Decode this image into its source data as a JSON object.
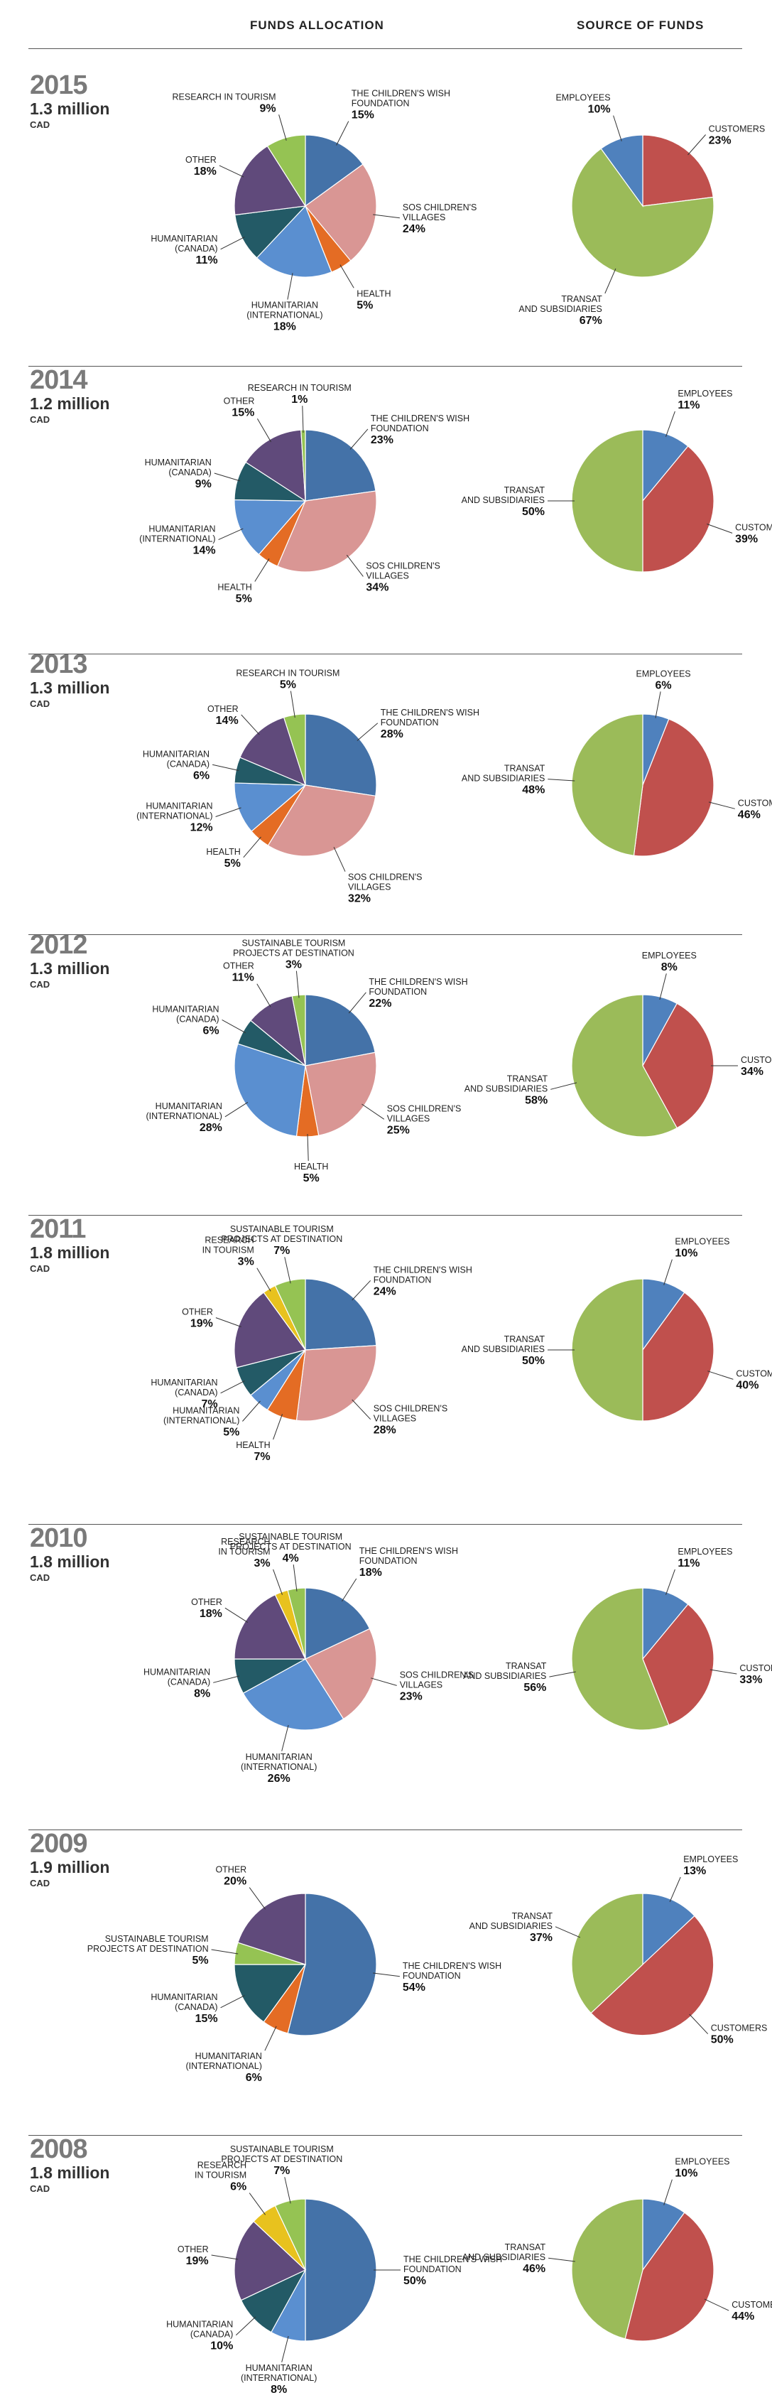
{
  "headers": {
    "funds": "FUNDS ALLOCATION",
    "source": "SOURCE OF FUNDS"
  },
  "colors": {
    "wish": "#4472a8",
    "sos": "#d99694",
    "health": "#e46c24",
    "intl": "#5a8fd0",
    "canada": "#235a66",
    "other": "#604a7b",
    "research": "#e8c21e",
    "sustainable": "#95c353",
    "employees": "#4f81bd",
    "customers": "#c0504d",
    "transat": "#9bbb59"
  },
  "chart_data": [
    {
      "year": "2015",
      "amount": "1.3 million",
      "unit": "CAD",
      "allocation": {
        "type": "pie",
        "title": "FUNDS ALLOCATION",
        "slices": [
          {
            "key": "wish",
            "label": [
              "THE CHILDREN'S WISH",
              "FOUNDATION"
            ],
            "value": 15,
            "text": "15%"
          },
          {
            "key": "sos",
            "label": [
              "SOS CHILDREN'S",
              "VILLAGES"
            ],
            "value": 24,
            "text": "24%"
          },
          {
            "key": "health",
            "label": [
              "HEALTH"
            ],
            "value": 5,
            "text": "5%"
          },
          {
            "key": "intl",
            "label": [
              "HUMANITARIAN",
              "(INTERNATIONAL)"
            ],
            "value": 18,
            "text": "18%"
          },
          {
            "key": "canada",
            "label": [
              "HUMANITARIAN",
              "(CANADA)"
            ],
            "value": 11,
            "text": "11%"
          },
          {
            "key": "other",
            "label": [
              "OTHER"
            ],
            "value": 18,
            "text": "18%"
          },
          {
            "key": "sustainable",
            "label": [
              "RESEARCH IN TOURISM"
            ],
            "value": 9,
            "text": "9%"
          }
        ]
      },
      "source": {
        "type": "pie",
        "title": "SOURCE OF FUNDS",
        "slices": [
          {
            "key": "customers",
            "label": [
              "CUSTOMERS"
            ],
            "value": 23,
            "text": "23%"
          },
          {
            "key": "transat",
            "label": [
              "TRANSAT",
              "AND SUBSIDIARIES"
            ],
            "value": 67,
            "text": "67%"
          },
          {
            "key": "employees",
            "label": [
              "EMPLOYEES"
            ],
            "value": 10,
            "text": "10%"
          }
        ]
      }
    },
    {
      "year": "2014",
      "amount": "1.2 million",
      "unit": "CAD",
      "allocation": {
        "type": "pie",
        "title": "FUNDS ALLOCATION",
        "slices": [
          {
            "key": "wish",
            "label": [
              "THE CHILDREN'S WISH",
              "FOUNDATION"
            ],
            "value": 23,
            "text": "23%"
          },
          {
            "key": "sos",
            "label": [
              "SOS CHILDREN'S",
              "VILLAGES"
            ],
            "value": 34,
            "text": "34%"
          },
          {
            "key": "health",
            "label": [
              "HEALTH"
            ],
            "value": 5,
            "text": "5%"
          },
          {
            "key": "intl",
            "label": [
              "HUMANITARIAN",
              "(INTERNATIONAL)"
            ],
            "value": 14,
            "text": "14%"
          },
          {
            "key": "canada",
            "label": [
              "HUMANITARIAN",
              "(CANADA)"
            ],
            "value": 9,
            "text": "9%"
          },
          {
            "key": "other",
            "label": [
              "OTHER"
            ],
            "value": 15,
            "text": "15%"
          },
          {
            "key": "sustainable",
            "label": [
              "RESEARCH IN TOURISM"
            ],
            "value": 1,
            "text": "1%"
          }
        ]
      },
      "source": {
        "type": "pie",
        "title": "SOURCE OF FUNDS",
        "slices": [
          {
            "key": "employees",
            "label": [
              "EMPLOYEES"
            ],
            "value": 11,
            "text": "11%"
          },
          {
            "key": "customers",
            "label": [
              "CUSTOMERS"
            ],
            "value": 39,
            "text": "39%"
          },
          {
            "key": "transat",
            "label": [
              "TRANSAT",
              "AND SUBSIDIARIES"
            ],
            "value": 50,
            "text": "50%"
          }
        ]
      }
    },
    {
      "year": "2013",
      "amount": "1.3 million",
      "unit": "CAD",
      "allocation": {
        "type": "pie",
        "title": "FUNDS ALLOCATION",
        "slices": [
          {
            "key": "wish",
            "label": [
              "THE CHILDREN'S WISH",
              "FOUNDATION"
            ],
            "value": 28,
            "text": "28%"
          },
          {
            "key": "sos",
            "label": [
              "SOS CHILDREN'S",
              "VILLAGES"
            ],
            "value": 32,
            "text": "32%"
          },
          {
            "key": "health",
            "label": [
              "HEALTH"
            ],
            "value": 5,
            "text": "5%"
          },
          {
            "key": "intl",
            "label": [
              "HUMANITARIAN",
              "(INTERNATIONAL)"
            ],
            "value": 12,
            "text": "12%"
          },
          {
            "key": "canada",
            "label": [
              "HUMANITARIAN",
              "(CANADA)"
            ],
            "value": 6,
            "text": "6%"
          },
          {
            "key": "other",
            "label": [
              "OTHER"
            ],
            "value": 14,
            "text": "14%"
          },
          {
            "key": "sustainable",
            "label": [
              "RESEARCH IN TOURISM"
            ],
            "value": 5,
            "text": "5%"
          }
        ]
      },
      "source": {
        "type": "pie",
        "title": "SOURCE OF FUNDS",
        "slices": [
          {
            "key": "employees",
            "label": [
              "EMPLOYEES"
            ],
            "value": 6,
            "text": "6%"
          },
          {
            "key": "customers",
            "label": [
              "CUSTOMERS"
            ],
            "value": 46,
            "text": "46%"
          },
          {
            "key": "transat",
            "label": [
              "TRANSAT",
              "AND SUBSIDIARIES"
            ],
            "value": 48,
            "text": "48%"
          }
        ]
      }
    },
    {
      "year": "2012",
      "amount": "1.3 million",
      "unit": "CAD",
      "allocation": {
        "type": "pie",
        "title": "FUNDS ALLOCATION",
        "slices": [
          {
            "key": "wish",
            "label": [
              "THE CHILDREN'S WISH",
              "FOUNDATION"
            ],
            "value": 22,
            "text": "22%"
          },
          {
            "key": "sos",
            "label": [
              "SOS CHILDREN'S",
              "VILLAGES"
            ],
            "value": 25,
            "text": "25%"
          },
          {
            "key": "health",
            "label": [
              "HEALTH"
            ],
            "value": 5,
            "text": "5%"
          },
          {
            "key": "intl",
            "label": [
              "HUMANITARIAN",
              "(INTERNATIONAL)"
            ],
            "value": 28,
            "text": "28%"
          },
          {
            "key": "canada",
            "label": [
              "HUMANITARIAN",
              "(CANADA)"
            ],
            "value": 6,
            "text": "6%"
          },
          {
            "key": "other",
            "label": [
              "OTHER"
            ],
            "value": 11,
            "text": "11%"
          },
          {
            "key": "sustainable",
            "label": [
              "SUSTAINABLE TOURISM",
              "PROJECTS AT DESTINATION"
            ],
            "value": 3,
            "text": "3%"
          }
        ]
      },
      "source": {
        "type": "pie",
        "title": "SOURCE OF FUNDS",
        "slices": [
          {
            "key": "employees",
            "label": [
              "EMPLOYEES"
            ],
            "value": 8,
            "text": "8%"
          },
          {
            "key": "customers",
            "label": [
              "CUSTOMERS"
            ],
            "value": 34,
            "text": "34%"
          },
          {
            "key": "transat",
            "label": [
              "TRANSAT",
              "AND SUBSIDIARIES"
            ],
            "value": 58,
            "text": "58%"
          }
        ]
      }
    },
    {
      "year": "2011",
      "amount": "1.8 million",
      "unit": "CAD",
      "allocation": {
        "type": "pie",
        "title": "FUNDS ALLOCATION",
        "slices": [
          {
            "key": "wish",
            "label": [
              "THE CHILDREN'S WISH",
              "FOUNDATION"
            ],
            "value": 24,
            "text": "24%"
          },
          {
            "key": "sos",
            "label": [
              "SOS CHILDREN'S",
              "VILLAGES"
            ],
            "value": 28,
            "text": "28%"
          },
          {
            "key": "health",
            "label": [
              "HEALTH"
            ],
            "value": 7,
            "text": "7%"
          },
          {
            "key": "intl",
            "label": [
              "HUMANITARIAN",
              "(INTERNATIONAL)"
            ],
            "value": 5,
            "text": "5%"
          },
          {
            "key": "canada",
            "label": [
              "HUMANITARIAN",
              "(CANADA)"
            ],
            "value": 7,
            "text": "7%"
          },
          {
            "key": "other",
            "label": [
              "OTHER"
            ],
            "value": 19,
            "text": "19%"
          },
          {
            "key": "research",
            "label": [
              "RESEARCH",
              "IN TOURISM"
            ],
            "value": 3,
            "text": "3%"
          },
          {
            "key": "sustainable",
            "label": [
              "SUSTAINABLE TOURISM",
              "PROJECTS AT DESTINATION"
            ],
            "value": 7,
            "text": "7%"
          }
        ]
      },
      "source": {
        "type": "pie",
        "title": "SOURCE OF FUNDS",
        "slices": [
          {
            "key": "employees",
            "label": [
              "EMPLOYEES"
            ],
            "value": 10,
            "text": "10%"
          },
          {
            "key": "customers",
            "label": [
              "CUSTOMERS"
            ],
            "value": 40,
            "text": "40%"
          },
          {
            "key": "transat",
            "label": [
              "TRANSAT",
              "AND SUBSIDIARIES"
            ],
            "value": 50,
            "text": "50%"
          }
        ]
      }
    },
    {
      "year": "2010",
      "amount": "1.8 million",
      "unit": "CAD",
      "allocation": {
        "type": "pie",
        "title": "FUNDS ALLOCATION",
        "slices": [
          {
            "key": "wish",
            "label": [
              "THE CHILDREN'S WISH",
              "FOUNDATION"
            ],
            "value": 18,
            "text": "18%"
          },
          {
            "key": "sos",
            "label": [
              "SOS CHILDREN'S",
              "VILLAGES"
            ],
            "value": 23,
            "text": "23%"
          },
          {
            "key": "intl",
            "label": [
              "HUMANITARIAN",
              "(INTERNATIONAL)"
            ],
            "value": 26,
            "text": "26%"
          },
          {
            "key": "canada",
            "label": [
              "HUMANITARIAN",
              "(CANADA)"
            ],
            "value": 8,
            "text": "8%"
          },
          {
            "key": "other",
            "label": [
              "OTHER"
            ],
            "value": 18,
            "text": "18%"
          },
          {
            "key": "research",
            "label": [
              "RESEARCH",
              "IN TOURISM"
            ],
            "value": 3,
            "text": "3%"
          },
          {
            "key": "sustainable",
            "label": [
              "SUSTAINABLE TOURISM",
              "PROJECTS AT DESTINATION"
            ],
            "value": 4,
            "text": "4%"
          }
        ]
      },
      "source": {
        "type": "pie",
        "title": "SOURCE OF FUNDS",
        "slices": [
          {
            "key": "employees",
            "label": [
              "EMPLOYEES"
            ],
            "value": 11,
            "text": "11%"
          },
          {
            "key": "customers",
            "label": [
              "CUSTOMERS"
            ],
            "value": 33,
            "text": "33%"
          },
          {
            "key": "transat",
            "label": [
              "TRANSAT",
              "AND SUBSIDIARIES"
            ],
            "value": 56,
            "text": "56%"
          }
        ]
      }
    },
    {
      "year": "2009",
      "amount": "1.9 million",
      "unit": "CAD",
      "allocation": {
        "type": "pie",
        "title": "FUNDS ALLOCATION",
        "slices": [
          {
            "key": "wish",
            "label": [
              "THE CHILDREN'S WISH",
              "FOUNDATION"
            ],
            "value": 54,
            "text": "54%"
          },
          {
            "key": "health",
            "label": [
              "HUMANITARIAN",
              "(INTERNATIONAL)"
            ],
            "value": 6,
            "text": "6%"
          },
          {
            "key": "canada",
            "label": [
              "HUMANITARIAN",
              "(CANADA)"
            ],
            "value": 15,
            "text": "15%"
          },
          {
            "key": "sustainable",
            "label": [
              "SUSTAINABLE TOURISM",
              "PROJECTS AT DESTINATION"
            ],
            "value": 5,
            "text": "5%"
          },
          {
            "key": "other",
            "label": [
              "OTHER"
            ],
            "value": 20,
            "text": "20%"
          }
        ]
      },
      "source": {
        "type": "pie",
        "title": "SOURCE OF FUNDS",
        "slices": [
          {
            "key": "employees",
            "label": [
              "EMPLOYEES"
            ],
            "value": 13,
            "text": "13%"
          },
          {
            "key": "customers",
            "label": [
              "CUSTOMERS"
            ],
            "value": 50,
            "text": "50%"
          },
          {
            "key": "transat",
            "label": [
              "TRANSAT",
              "AND SUBSIDIARIES"
            ],
            "value": 37,
            "text": "37%"
          }
        ]
      }
    },
    {
      "year": "2008",
      "amount": "1.8 million",
      "unit": "CAD",
      "allocation": {
        "type": "pie",
        "title": "FUNDS ALLOCATION",
        "slices": [
          {
            "key": "wish",
            "label": [
              "THE CHILDREN'S WISH",
              "FOUNDATION"
            ],
            "value": 50,
            "text": "50%"
          },
          {
            "key": "intl",
            "label": [
              "HUMANITARIAN",
              "(INTERNATIONAL)"
            ],
            "value": 8,
            "text": "8%"
          },
          {
            "key": "canada",
            "label": [
              "HUMANITARIAN",
              "(CANADA)"
            ],
            "value": 10,
            "text": "10%"
          },
          {
            "key": "other",
            "label": [
              "OTHER"
            ],
            "value": 19,
            "text": "19%"
          },
          {
            "key": "research",
            "label": [
              "RESEARCH",
              "IN TOURISM"
            ],
            "value": 6,
            "text": "6%"
          },
          {
            "key": "sustainable",
            "label": [
              "SUSTAINABLE TOURISM",
              "PROJECTS AT DESTINATION"
            ],
            "value": 7,
            "text": "7%"
          }
        ]
      },
      "source": {
        "type": "pie",
        "title": "SOURCE OF FUNDS",
        "slices": [
          {
            "key": "employees",
            "label": [
              "EMPLOYEES"
            ],
            "value": 10,
            "text": "10%"
          },
          {
            "key": "customers",
            "label": [
              "CUSTOMERS"
            ],
            "value": 44,
            "text": "44%"
          },
          {
            "key": "transat",
            "label": [
              "TRANSAT",
              "AND SUBSIDIARIES"
            ],
            "value": 46,
            "text": "46%"
          }
        ]
      }
    }
  ]
}
